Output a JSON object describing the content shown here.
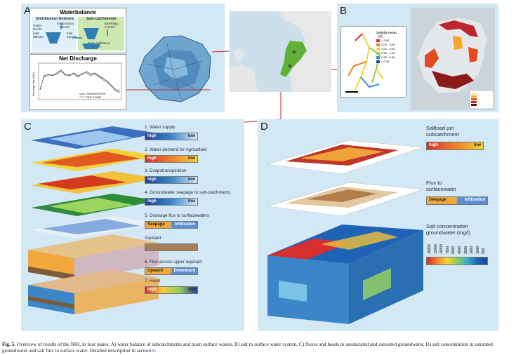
{
  "panels": {
    "a": {
      "letter": "A",
      "waterbalance_title": "Waterbalance",
      "distribution_network": "Distribution Network",
      "sub_catchments": "Sub-catchments",
      "outlet": "Outlet",
      "outlet_val": "9m3/s",
      "evaporation": "Evaporation",
      "evaporation_val": "10m3/s",
      "sprinkling": "Sprinkling",
      "sprinkling_val": "17m3/s",
      "inlet": "Inlet",
      "inlet_val": "68m3/s",
      "inlet2": "Inlet",
      "inlet2_val": "33m3/s",
      "netto_infiltration": "Netto infiltration",
      "netto_infiltration_val": "26m3/s",
      "net_discharge_title": "Net Discharge",
      "ylabel": "Discharge rate (m3/s)",
      "legend_measurement": "measurement",
      "legend_nhi": "NHI model"
    },
    "b": {
      "letter": "B",
      "legend_title": "Salinity mean",
      "legend_unit": "(g/l)",
      "legend_items": [
        "> 3.00",
        "2.00 - 3.00",
        "1.00 - 2.00",
        "0.50 - 1.00",
        "0.25 - 0.50",
        "< 0.25"
      ],
      "legend_colors": [
        "#d62f2f",
        "#f07f2a",
        "#f5d23a",
        "#8fce5a",
        "#3a8fd6",
        "#1c3f9e"
      ]
    },
    "c": {
      "letter": "C",
      "layers": [
        {
          "title": "1. Water supply",
          "left": "high",
          "right": "low"
        },
        {
          "title": "2. Water demand for Agriculture",
          "left": "high",
          "right": "low"
        },
        {
          "title": "3. Evapotranspiration",
          "left": "high",
          "right": "low"
        },
        {
          "title": "4. Groundwater seepage to sub-catchments",
          "left": "high",
          "right": "low"
        },
        {
          "title": "5. Drainage flux to surfacewaters",
          "left": "Seepage",
          "right": "Infiltration"
        },
        {
          "title": "Aquitard",
          "left": "",
          "right": ""
        },
        {
          "title": "6. Flux across upper aquitard",
          "left": "Upward",
          "right": "Downward"
        },
        {
          "title": "7. Head",
          "left": "high",
          "right": "low"
        }
      ]
    },
    "d": {
      "letter": "D",
      "saltload_title_1": "Saltload per",
      "saltload_title_2": "subcatchment",
      "saltload_left": "high",
      "saltload_right": "low",
      "flux_title_1": "Flux to",
      "flux_title_2": "surfacewater",
      "flux_left": "Seepage",
      "flux_right": "Infiltration",
      "conc_title_1": "Salt concentration",
      "conc_title_2": "groundwater (mg/l)",
      "conc_ticks": [
        "15000",
        "12000",
        "10000",
        "7500",
        "5000",
        "4000",
        "3000",
        "2000",
        "1000",
        "500"
      ]
    }
  },
  "caption": {
    "label": "Fig. 5.",
    "text": " Overview of results of the NHI, in four panes: A) water balance of subcatchments and main surface waters, B) salt in surface water system, C) fluxes and heads in unsaturated and saturated groundwater, D) salt concentration in saturated groundwater and salt flux to surface water. Detailed description in section ",
    "section_ref": "8",
    "end": "."
  }
}
